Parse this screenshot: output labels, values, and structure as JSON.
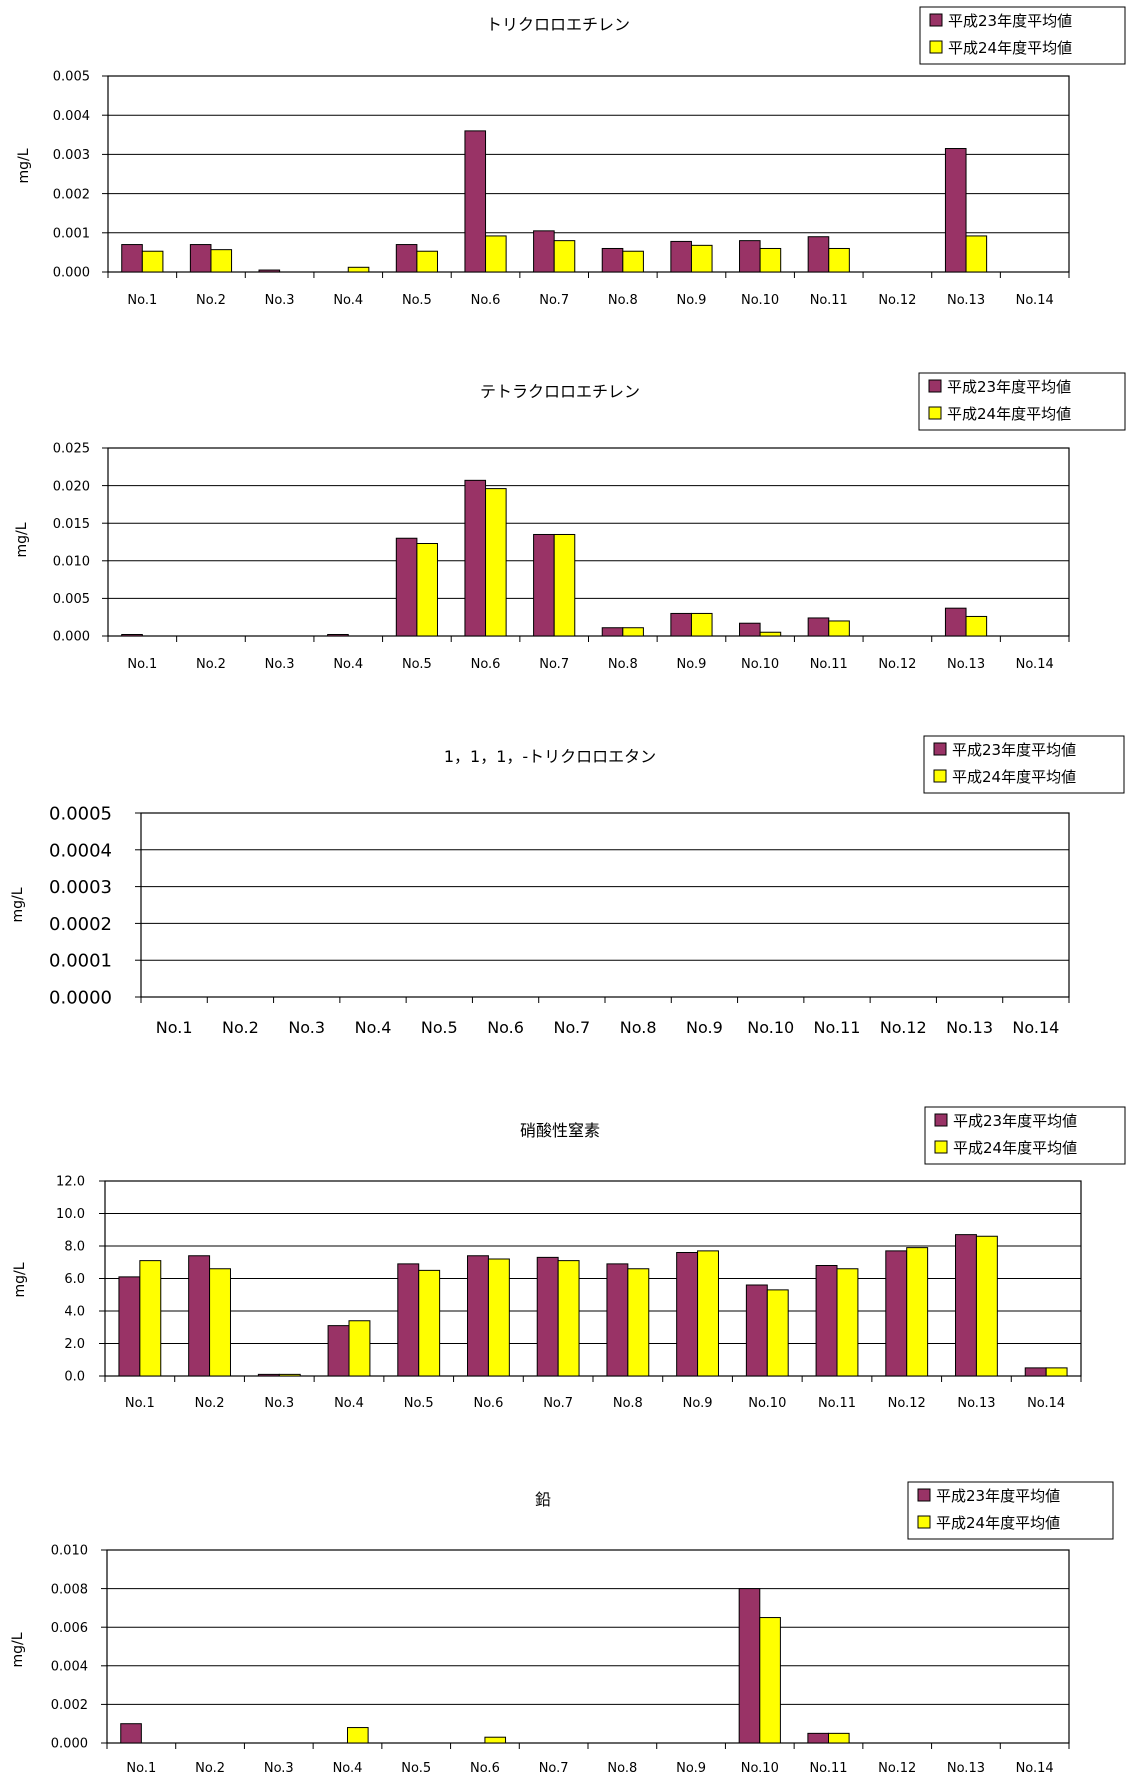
{
  "colors": {
    "series_2011": "#993366",
    "series_2012": "#ffff00",
    "grid": "#000000",
    "frame": "#000000"
  },
  "chart_data": [
    {
      "type": "bar",
      "title": "トリクロロエチレン",
      "ylabel": "mg/L",
      "categories": [
        "No.1",
        "No.2",
        "No.3",
        "No.4",
        "No.5",
        "No.6",
        "No.7",
        "No.8",
        "No.9",
        "No.10",
        "No.11",
        "No.12",
        "No.13",
        "No.14"
      ],
      "ylim": [
        0,
        0.005
      ],
      "yticks": [
        "0.000",
        "0.001",
        "0.002",
        "0.003",
        "0.004",
        "0.005"
      ],
      "grid": true,
      "legend_position": "top-right",
      "series": [
        {
          "name": "平成23年度平均値",
          "values": [
            0.0007,
            0.0007,
            5e-05,
            0,
            0.0007,
            0.0036,
            0.00105,
            0.0006,
            0.00078,
            0.0008,
            0.0009,
            0,
            0.00315,
            0
          ]
        },
        {
          "name": "平成24年度平均値",
          "values": [
            0.00053,
            0.00057,
            0,
            0.00012,
            0.00053,
            0.00092,
            0.0008,
            0.00053,
            0.00068,
            0.0006,
            0.0006,
            0,
            0.00092,
            0
          ]
        }
      ]
    },
    {
      "type": "bar",
      "title": "テトラクロロエチレン",
      "ylabel": "mg/L",
      "categories": [
        "No.1",
        "No.2",
        "No.3",
        "No.4",
        "No.5",
        "No.6",
        "No.7",
        "No.8",
        "No.9",
        "No.10",
        "No.11",
        "No.12",
        "No.13",
        "No.14"
      ],
      "ylim": [
        0,
        0.025
      ],
      "yticks": [
        "0.000",
        "0.005",
        "0.010",
        "0.015",
        "0.020",
        "0.025"
      ],
      "grid": true,
      "legend_position": "top-right",
      "series": [
        {
          "name": "平成23年度平均値",
          "values": [
            0.0002,
            0,
            0,
            0.0002,
            0.013,
            0.0207,
            0.0135,
            0.0011,
            0.003,
            0.0017,
            0.0024,
            0,
            0.0037,
            0
          ]
        },
        {
          "name": "平成24年度平均値",
          "values": [
            0,
            0,
            0,
            0,
            0.0123,
            0.0196,
            0.0135,
            0.0011,
            0.003,
            0.0005,
            0.002,
            0,
            0.0026,
            0
          ]
        }
      ]
    },
    {
      "type": "bar",
      "title": "1，1，1，-トリクロロエタン",
      "ylabel": "mg/L",
      "categories": [
        "No.1",
        "No.2",
        "No.3",
        "No.4",
        "No.5",
        "No.6",
        "No.7",
        "No.8",
        "No.9",
        "No.10",
        "No.11",
        "No.12",
        "No.13",
        "No.14"
      ],
      "ylim": [
        0,
        0.0005
      ],
      "yticks": [
        "0.0000",
        "0.0001",
        "0.0002",
        "0.0003",
        "0.0004",
        "0.0005"
      ],
      "grid": true,
      "legend_position": "top-right",
      "series": [
        {
          "name": "平成23年度平均値",
          "values": [
            0,
            0,
            0,
            0,
            0,
            0,
            0,
            0,
            0,
            0,
            0,
            0,
            0,
            0
          ]
        },
        {
          "name": "平成24年度平均値",
          "values": [
            0,
            0,
            0,
            0,
            0,
            0,
            0,
            0,
            0,
            0,
            0,
            0,
            0,
            0
          ]
        }
      ]
    },
    {
      "type": "bar",
      "title": "硝酸性窒素",
      "ylabel": "mg/L",
      "categories": [
        "No.1",
        "No.2",
        "No.3",
        "No.4",
        "No.5",
        "No.6",
        "No.7",
        "No.8",
        "No.9",
        "No.10",
        "No.11",
        "No.12",
        "No.13",
        "No.14"
      ],
      "ylim": [
        0,
        12
      ],
      "yticks": [
        "0.0",
        "2.0",
        "4.0",
        "6.0",
        "8.0",
        "10.0",
        "12.0"
      ],
      "grid": true,
      "legend_position": "top-right",
      "series": [
        {
          "name": "平成23年度平均値",
          "values": [
            6.1,
            7.4,
            0.1,
            3.1,
            6.9,
            7.4,
            7.3,
            6.9,
            7.6,
            5.6,
            6.8,
            7.7,
            8.7,
            0.5
          ]
        },
        {
          "name": "平成24年度平均値",
          "values": [
            7.1,
            6.6,
            0.1,
            3.4,
            6.5,
            7.2,
            7.1,
            6.6,
            7.7,
            5.3,
            6.6,
            7.9,
            8.6,
            0.5
          ]
        }
      ]
    },
    {
      "type": "bar",
      "title": "鉛",
      "ylabel": "mg/L",
      "categories": [
        "No.1",
        "No.2",
        "No.3",
        "No.4",
        "No.5",
        "No.6",
        "No.7",
        "No.8",
        "No.9",
        "No.10",
        "No.11",
        "No.12",
        "No.13",
        "No.14"
      ],
      "ylim": [
        0,
        0.01
      ],
      "yticks": [
        "0.000",
        "0.002",
        "0.004",
        "0.006",
        "0.008",
        "0.010"
      ],
      "grid": true,
      "legend_position": "top-right",
      "series": [
        {
          "name": "平成23年度平均値",
          "values": [
            0.001,
            0,
            0,
            0,
            0,
            0,
            0,
            0,
            0,
            0.008,
            0.0005,
            0,
            0,
            0
          ]
        },
        {
          "name": "平成24年度平均値",
          "values": [
            0,
            0,
            0,
            0.0008,
            0,
            0.0003,
            0,
            0,
            0,
            0.0065,
            0.0005,
            0,
            0,
            0
          ]
        }
      ]
    }
  ]
}
